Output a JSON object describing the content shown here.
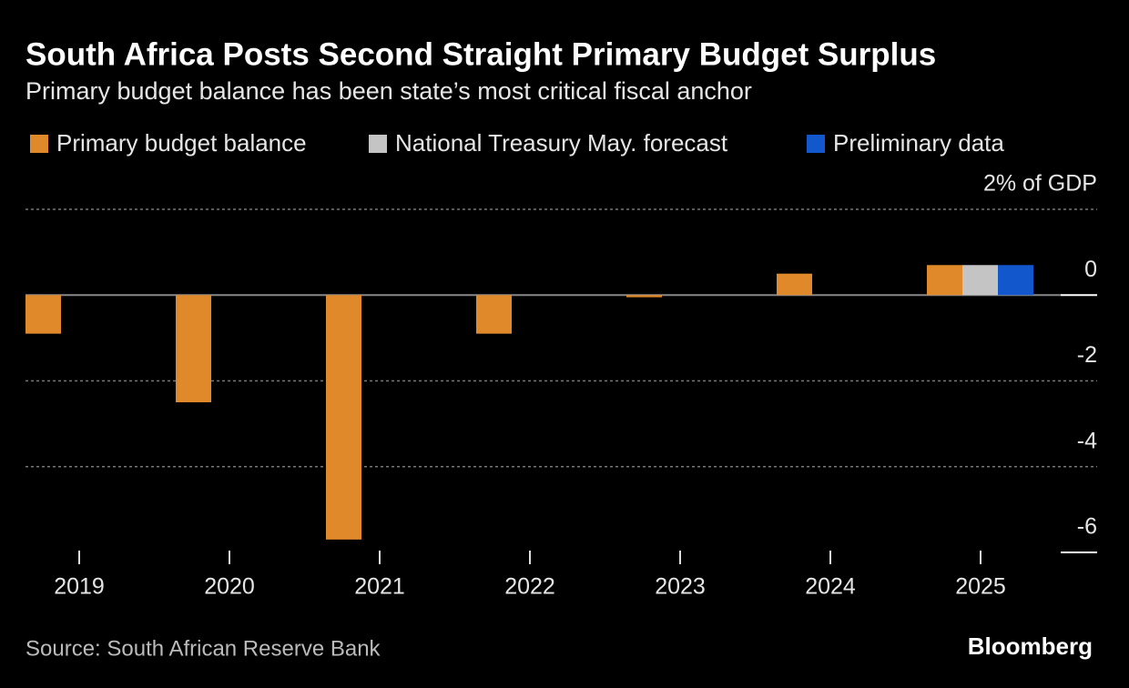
{
  "chart_data": {
    "type": "bar",
    "title": "South Africa Posts Second Straight Primary Budget Surplus",
    "subtitle": "Primary budget balance has been state’s most critical fiscal anchor",
    "categories": [
      "2019",
      "2020",
      "2021",
      "2022",
      "2023",
      "2024",
      "2025"
    ],
    "series": [
      {
        "name": "Primary budget balance",
        "color": "#e0892a",
        "values": [
          -0.9,
          -2.5,
          -5.7,
          -0.9,
          -0.05,
          0.5,
          0.7
        ]
      },
      {
        "name": "National Treasury May. forecast",
        "color": "#c4c4c4",
        "values": [
          null,
          null,
          null,
          null,
          null,
          null,
          0.7
        ]
      },
      {
        "name": "Preliminary data",
        "color": "#1257cc",
        "values": [
          null,
          null,
          null,
          null,
          null,
          null,
          0.7
        ]
      }
    ],
    "ylim": [
      -6,
      2
    ],
    "yticks": [
      {
        "value": 2,
        "label": "2% of GDP"
      },
      0,
      -2,
      -4,
      -6
    ],
    "grid": true,
    "source": "Source: South African Reserve Bank",
    "brand": "Bloomberg"
  }
}
